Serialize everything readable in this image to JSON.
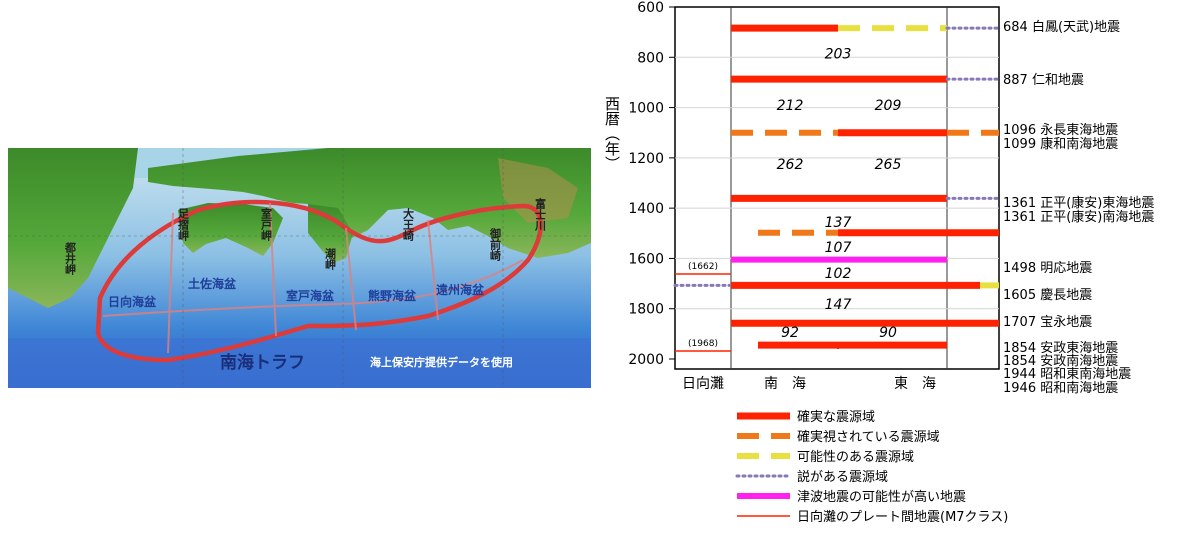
{
  "map": {
    "credit": "海上保安庁提供データを使用",
    "trough_label": "南海トラフ",
    "basins": [
      "日向海盆",
      "土佐海盆",
      "室戸海盆",
      "熊野海盆",
      "遠州海盆"
    ],
    "capes": [
      "都井岬",
      "足摺岬",
      "室戸岬",
      "潮岬",
      "大王崎",
      "御前崎",
      "富士川"
    ]
  },
  "chart_data": {
    "type": "timeline",
    "ylabel": "西暦（年）",
    "yticks": [
      600,
      800,
      1000,
      1200,
      1400,
      1600,
      1800,
      2000
    ],
    "ylim": [
      600,
      2000
    ],
    "columns": [
      "日向灘",
      "南　海",
      "東　海"
    ],
    "intervals": [
      {
        "label": "203",
        "year": 785,
        "x": "center"
      },
      {
        "label": "212",
        "year": 990,
        "x": "left"
      },
      {
        "label": "209",
        "year": 990,
        "x": "right"
      },
      {
        "label": "262",
        "year": 1225,
        "x": "left"
      },
      {
        "label": "265",
        "year": 1225,
        "x": "right"
      },
      {
        "label": "137",
        "year": 1455,
        "x": "center"
      },
      {
        "label": "107",
        "year": 1555,
        "x": "center"
      },
      {
        "label": "102",
        "year": 1657,
        "x": "center"
      },
      {
        "label": "147",
        "year": 1782,
        "x": "center"
      },
      {
        "label": "92",
        "year": 1893,
        "x": "left"
      },
      {
        "label": "90",
        "year": 1893,
        "x": "right"
      }
    ],
    "small_labels": [
      {
        "label": "(1662)",
        "year": 1662
      },
      {
        "label": "(1968)",
        "year": 1968
      }
    ],
    "events": [
      {
        "year": 684,
        "label": "684 白鳳(天武)地震"
      },
      {
        "year": 887,
        "label": "887 仁和地震"
      },
      {
        "year": 1096,
        "label": "1096 永長東海地震"
      },
      {
        "year": 1099,
        "label": "1099 康和南海地震"
      },
      {
        "year": 1361,
        "label": "1361 正平(康安)東海地震"
      },
      {
        "year": 1361,
        "label": "1361 正平(康安)南海地震"
      },
      {
        "year": 1498,
        "label": "1498 明応地震"
      },
      {
        "year": 1605,
        "label": "1605 慶長地震"
      },
      {
        "year": 1707,
        "label": "1707 宝永地震"
      },
      {
        "year": 1854,
        "label": "1854 安政東海地震"
      },
      {
        "year": 1854,
        "label": "1854 安政南海地震"
      },
      {
        "year": 1944,
        "label": "1944 昭和東南海地震"
      },
      {
        "year": 1946,
        "label": "1946 昭和南海地震"
      }
    ],
    "segments": [
      {
        "year": 684,
        "start": "nankai_west",
        "end": "mid",
        "style": "certain"
      },
      {
        "year": 684,
        "start": "mid",
        "end": "tokai_east",
        "style": "possible"
      },
      {
        "year": 684,
        "start": "tokai_east",
        "end": "frame_right",
        "style": "theory"
      },
      {
        "year": 887,
        "start": "nankai_west",
        "end": "tokai_east",
        "style": "certain"
      },
      {
        "year": 887,
        "start": "tokai_east",
        "end": "frame_right",
        "style": "theory"
      },
      {
        "year": 1100,
        "start": "nankai_west",
        "end": "mid",
        "style": "likely"
      },
      {
        "year": 1100,
        "start": "mid",
        "end": "tokai_east",
        "style": "certain"
      },
      {
        "year": 1100,
        "start": "tokai_east",
        "end": "frame_right",
        "style": "likely"
      },
      {
        "year": 1361,
        "start": "nankai_west",
        "end": "tokai_east",
        "style": "certain"
      },
      {
        "year": 1361,
        "start": "tokai_east",
        "end": "frame_right",
        "style": "theory"
      },
      {
        "year": 1498,
        "start": "nankai_mid",
        "end": "mid",
        "style": "likely"
      },
      {
        "year": 1498,
        "start": "mid",
        "end": "frame_right",
        "style": "certain"
      },
      {
        "year": 1605,
        "start": "nankai_west",
        "end": "tokai_east",
        "style": "tsunami"
      },
      {
        "year": 1707,
        "start": "frame_left",
        "end": "nankai_west",
        "style": "theory"
      },
      {
        "year": 1707,
        "start": "nankai_west",
        "end": "tokai_late",
        "style": "certain"
      },
      {
        "year": 1707,
        "start": "tokai_late",
        "end": "frame_right",
        "style": "possible"
      },
      {
        "year": 1858,
        "start": "nankai_west",
        "end": "frame_right",
        "style": "certain"
      },
      {
        "year": 1945,
        "start": "nankai_mid",
        "end": "tokai_east",
        "style": "certain"
      },
      {
        "year": 1662,
        "start": "frame_left",
        "end": "nankai_west",
        "style": "hyuga"
      },
      {
        "year": 1968,
        "start": "frame_left",
        "end": "nankai_west",
        "style": "hyuga"
      }
    ],
    "legend": [
      {
        "style": "certain",
        "label": "確実な震源域"
      },
      {
        "style": "likely",
        "label": "確実視されている震源域"
      },
      {
        "style": "possible",
        "label": "可能性のある震源域"
      },
      {
        "style": "theory",
        "label": "説がある震源域"
      },
      {
        "style": "tsunami",
        "label": "津波地震の可能性が高い地震"
      },
      {
        "style": "hyuga",
        "label": "日向灘のプレート間地震(M7クラス)"
      }
    ],
    "colors": {
      "certain": "#ff2200",
      "likely": "#f07818",
      "possible": "#e8e040",
      "theory": "#8878b8",
      "tsunami": "#ff22ee",
      "hyuga": "#ff2200"
    }
  }
}
